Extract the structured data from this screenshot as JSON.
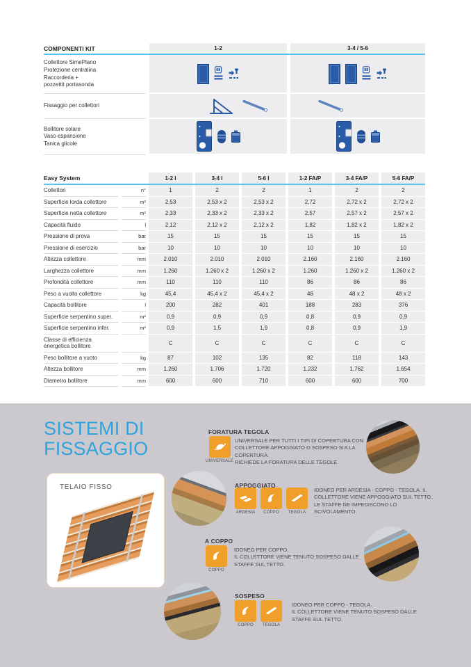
{
  "colors": {
    "accent_blue": "#2FA3DB",
    "table_rule_blue": "#55C2EF",
    "band_gray": "#EDEDEF",
    "icon_blue": "#2A5CA8",
    "icon_orange": "#F0A02A",
    "section_bg": "#CBC9CE"
  },
  "kit_table": {
    "title": "COMPONENTI KIT",
    "columns": [
      "1-2",
      "3-4 / 5-6"
    ],
    "rows": [
      {
        "label": "Collettore SimePlano\nProtezione centralina\nRaccorderia +\npozzettit portasonda",
        "icons_kit12": [
          "collector-panel-icon",
          "control-unit-icon",
          "fittings-icon"
        ],
        "icons_kit3456": [
          "collector-panel-icon",
          "collector-panel-icon",
          "control-unit-icon",
          "fittings-icon"
        ]
      },
      {
        "label": "Fissaggio per collettori",
        "icons_kit12": [
          "mounting-stand-icon",
          "mounting-rail-icon"
        ],
        "icons_kit3456": [
          "mounting-rail-icon"
        ]
      },
      {
        "label": "Bollitore solare\nVaso espansione\nTanica glicole",
        "icons_kit12": [
          "boiler-icon",
          "expansion-vessel-icon",
          "glycol-tank-icon"
        ],
        "icons_kit3456": [
          "boiler-icon",
          "expansion-vessel-icon",
          "glycol-tank-icon"
        ]
      }
    ]
  },
  "spec_table": {
    "title": "Easy System",
    "columns": [
      "1-2 I",
      "3-4 I",
      "5-6 I",
      "1-2 FA/P",
      "3-4 FA/P",
      "5-6 FA/P"
    ],
    "rows": [
      {
        "label": "Collettori",
        "unit": "n°",
        "values": [
          "1",
          "2",
          "2",
          "1",
          "2",
          "2"
        ]
      },
      {
        "label": "Superficie lorda collettore",
        "unit": "m²",
        "values": [
          "2,53",
          "2,53 x 2",
          "2,53 x 2",
          "2,72",
          "2,72 x 2",
          "2,72 x 2"
        ]
      },
      {
        "label": "Superficie netta collettore",
        "unit": "m²",
        "values": [
          "2,33",
          "2,33 x 2",
          "2,33 x 2",
          "2,57",
          "2,57 x 2",
          "2,57 x 2"
        ]
      },
      {
        "label": "Capacità fluido",
        "unit": "l",
        "values": [
          "2,12",
          "2,12 x 2",
          "2,12 x 2",
          "1,82",
          "1,82 x 2",
          "1,82 x 2"
        ]
      },
      {
        "label": "Pressione di prova",
        "unit": "bar",
        "values": [
          "15",
          "15",
          "15",
          "15",
          "15",
          "15"
        ]
      },
      {
        "label": "Pressione di esercizio",
        "unit": "bar",
        "values": [
          "10",
          "10",
          "10",
          "10",
          "10",
          "10"
        ]
      },
      {
        "label": "Altezza collettore",
        "unit": "mm",
        "values": [
          "2.010",
          "2.010",
          "2.010",
          "2.160",
          "2.160",
          "2.160"
        ]
      },
      {
        "label": "Larghezza collettore",
        "unit": "mm",
        "values": [
          "1.260",
          "1.260 x 2",
          "1.260 x 2",
          "1.260",
          "1.260 x 2",
          "1.260 x 2"
        ]
      },
      {
        "label": "Profondità collettore",
        "unit": "mm",
        "values": [
          "110",
          "110",
          "110",
          "86",
          "86",
          "86"
        ]
      },
      {
        "label": "Peso a vuolto collettore",
        "unit": "kg",
        "values": [
          "45,4",
          "45,4 x 2",
          "45,4 x 2",
          "48",
          "48 x 2",
          "48 x 2"
        ]
      },
      {
        "label": "Capacità bollitore",
        "unit": "l",
        "values": [
          "200",
          "282",
          "401",
          "188",
          "283",
          "376"
        ]
      },
      {
        "label": "Superficie serpentino super.",
        "unit": "m²",
        "values": [
          "0,9",
          "0,9",
          "0,9",
          "0,8",
          "0,9",
          "0,9"
        ]
      },
      {
        "label": "Superficie serpentino infer.",
        "unit": "m²",
        "values": [
          "0,9",
          "1,5",
          "1,9",
          "0,8",
          "0,9",
          "1,9"
        ]
      },
      {
        "label": "Classe di efficienza\nenergetica bollitore",
        "unit": "",
        "values": [
          "C",
          "C",
          "C",
          "C",
          "C",
          "C"
        ]
      },
      {
        "label": "Peso bollitore a vuoto",
        "unit": "kg",
        "values": [
          "87",
          "102",
          "135",
          "82",
          "118",
          "143"
        ]
      },
      {
        "label": "Altezza bollitore",
        "unit": "mm",
        "values": [
          "1.260",
          "1.706",
          "1.720",
          "1.232",
          "1.762",
          "1.654"
        ]
      },
      {
        "label": "Diametro bollitore",
        "unit": "mm",
        "values": [
          "600",
          "600",
          "710",
          "600",
          "600",
          "700"
        ]
      }
    ]
  },
  "fixing_section": {
    "heading": "SISTEMI DI\nFISSAGGIO",
    "card_label": "TELAIO FISSO",
    "items": [
      {
        "title": "FORATURA TEGOLA",
        "badges": [
          "UNIVERSALE"
        ],
        "text": "UNIVERSALE PER TUTTI I TIPI DI COPERTURA CON COLLETTORE APPOGGIATO O SOSPESO SULLA COPERTURA.\nRICHIEDE LA FORATURA DELLE TEGOLE"
      },
      {
        "title": "APPOGGIATO",
        "badges": [
          "ARDESIA",
          "COPPO",
          "TEGOLA"
        ],
        "text": "IDONEO PER ARDESIA - COPPO - TEGOLA. IL COLLETTORE VIENE APPOGGIATO SUL TETTO. LE STAFFE NE IMPEDISCONO LO SCIVOLAMENTO."
      },
      {
        "title": "A COPPO",
        "badges": [
          "COPPO"
        ],
        "text": "IDONEO PER COPPO.\nIL COLLETTORE VIENE TENUTO SOSPESO DALLE STAFFE SUL TETTO."
      },
      {
        "title": "SOSPESO",
        "badges": [
          "COPPO",
          "TEGOLA"
        ],
        "text": "IDONEO PER COPPO - TEGOLA.\nIL COLLETTORE VIENE TENUTO SOSPESO DALLE STAFFE SUL TETTO."
      }
    ]
  }
}
